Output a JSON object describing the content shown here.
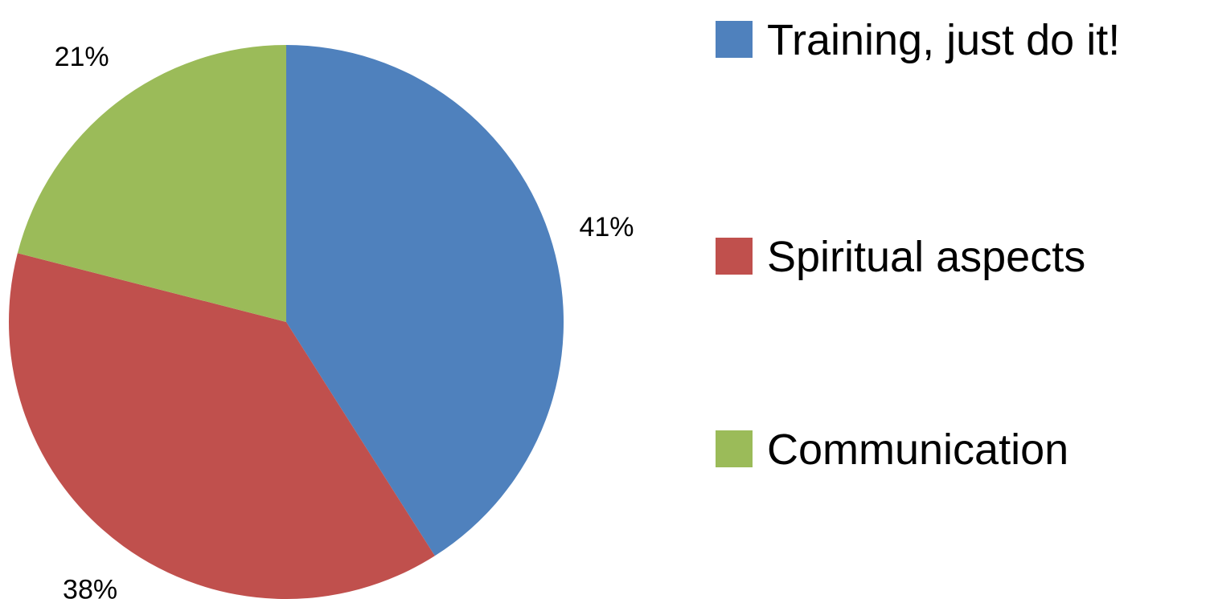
{
  "chart_data": {
    "type": "pie",
    "categories": [
      "Training, just do it!",
      "Spiritual aspects",
      "Communication"
    ],
    "values": [
      41,
      38,
      21
    ],
    "value_labels": [
      "41%",
      "38%",
      "21%"
    ],
    "colors": [
      "#4f81bd",
      "#c0504d",
      "#9bbb59"
    ],
    "legend": "right"
  }
}
